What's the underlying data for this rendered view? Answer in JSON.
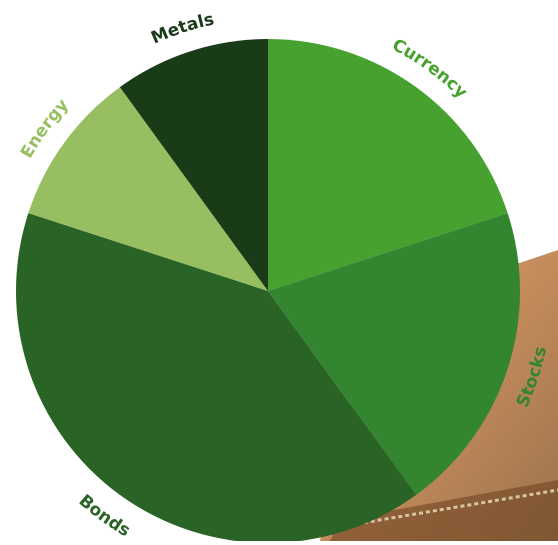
{
  "chart_data": {
    "type": "pie",
    "title": "",
    "legend": "none",
    "slices": [
      {
        "label": "Currency",
        "value": 20,
        "color": "#46a12f"
      },
      {
        "label": "Stocks",
        "value": 20,
        "color": "#348530"
      },
      {
        "label": "Bonds",
        "value": 40,
        "color": "#2a6326"
      },
      {
        "label": "Energy",
        "value": 10,
        "color": "#97bf62"
      },
      {
        "label": "Metals",
        "value": 10,
        "color": "#1a3b18"
      }
    ],
    "label_colors": [
      "#46a12f",
      "#348530",
      "#2a6326",
      "#97bf62",
      "#1a3b18"
    ]
  }
}
